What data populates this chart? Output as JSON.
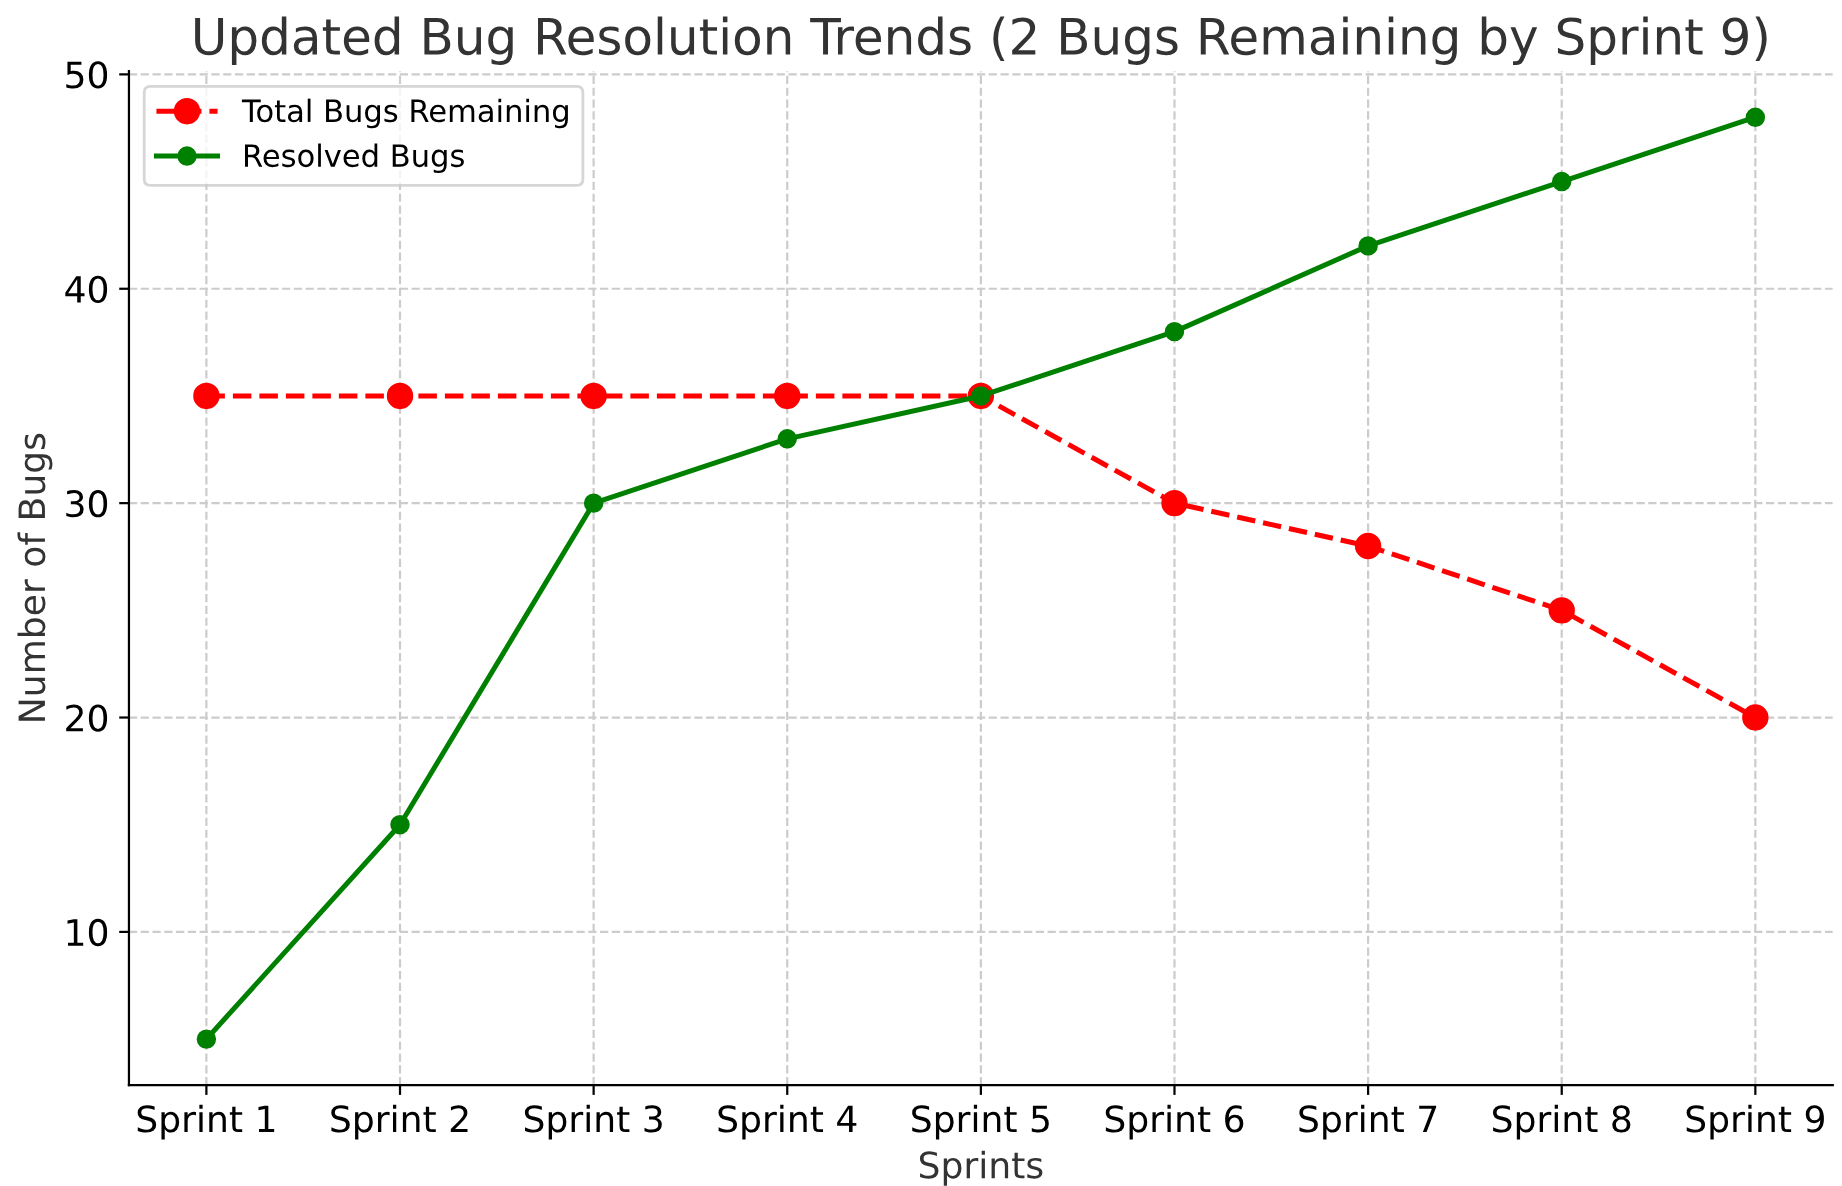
{
  "chart_data": {
    "type": "line",
    "title": "Updated Bug Resolution Trends (2 Bugs Remaining by Sprint 9)",
    "xlabel": "Sprints",
    "ylabel": "Number of Bugs",
    "categories": [
      "Sprint 1",
      "Sprint 2",
      "Sprint 3",
      "Sprint 4",
      "Sprint 5",
      "Sprint 6",
      "Sprint 7",
      "Sprint 8",
      "Sprint 9"
    ],
    "series": [
      {
        "name": "Total Bugs Remaining",
        "color": "#ff0000",
        "line_style": "dashed",
        "values": [
          35,
          35,
          35,
          35,
          35,
          30,
          28,
          25,
          20
        ]
      },
      {
        "name": "Resolved Bugs",
        "color": "#008000",
        "line_style": "solid",
        "values": [
          5,
          15,
          30,
          33,
          35,
          38,
          42,
          45,
          48
        ]
      }
    ],
    "ylim": [
      2.85,
      50.15
    ],
    "yticks": [
      10,
      20,
      30,
      40,
      50
    ],
    "grid": true,
    "legend": "top left",
    "marker": "circle"
  }
}
